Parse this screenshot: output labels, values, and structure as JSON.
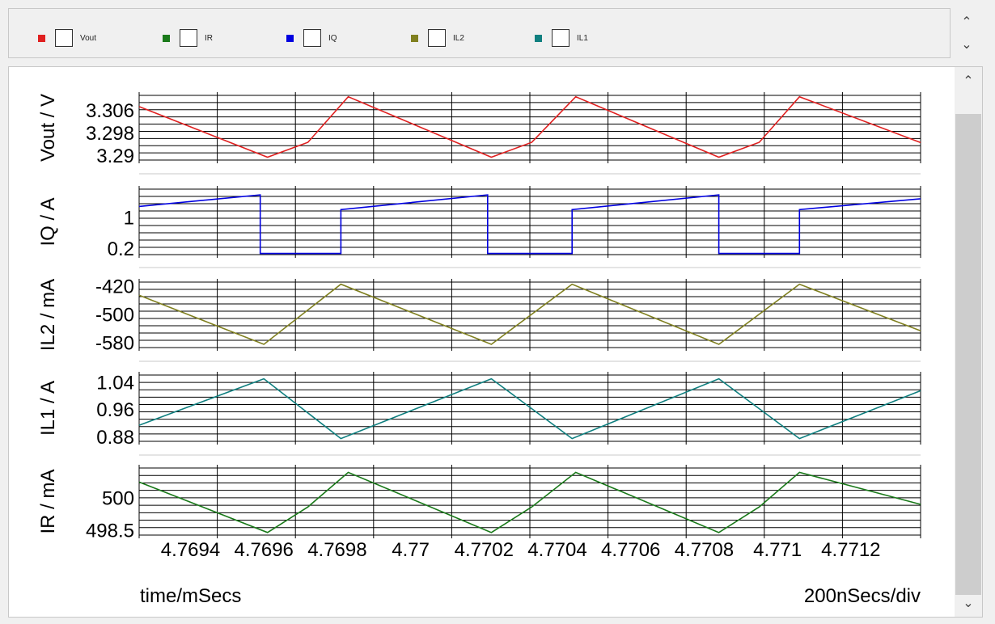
{
  "legend": [
    {
      "label": "Vout",
      "color": "#e02020"
    },
    {
      "label": "IR",
      "color": "#1a7a1a"
    },
    {
      "label": "IQ",
      "color": "#0000e0"
    },
    {
      "label": "IL2",
      "color": "#808020"
    },
    {
      "label": "IL1",
      "color": "#108080"
    }
  ],
  "footer": {
    "left": "time/mSecs",
    "right": "200nSecs/div"
  },
  "icons": {
    "up": "chevron-up-icon",
    "down": "chevron-down-icon"
  },
  "chart_data": {
    "type": "line",
    "xlabel": "time/mSecs",
    "xlim": [
      4.76926,
      4.77139
    ],
    "xticks": [
      {
        "value": 4.7694,
        "label": "4.7694"
      },
      {
        "value": 4.7696,
        "label": "4.7696"
      },
      {
        "value": 4.7698,
        "label": "4.7698"
      },
      {
        "value": 4.77,
        "label": "4.77"
      },
      {
        "value": 4.7702,
        "label": "4.7702"
      },
      {
        "value": 4.7704,
        "label": "4.7704"
      },
      {
        "value": 4.7706,
        "label": "4.7706"
      },
      {
        "value": 4.7708,
        "label": "4.7708"
      },
      {
        "value": 4.771,
        "label": "4.771"
      },
      {
        "value": 4.7712,
        "label": "4.7712"
      }
    ],
    "panels": [
      {
        "ylabel": "Vout / V",
        "color": "#e02020",
        "ylim": [
          3.2885,
          3.3115
        ],
        "yticks": [
          {
            "value": 3.306,
            "label": "3.306"
          },
          {
            "value": 3.298,
            "label": "3.298"
          },
          {
            "value": 3.29,
            "label": "3.29"
          }
        ],
        "x": [
          4.76926,
          4.76961,
          4.76972,
          4.76983,
          4.77022,
          4.77033,
          4.77045,
          4.77084,
          4.77095,
          4.77106,
          4.77139
        ],
        "y": [
          3.3075,
          3.2895,
          3.2948,
          3.311,
          3.2895,
          3.2948,
          3.311,
          3.2895,
          3.2948,
          3.311,
          3.2947
        ]
      },
      {
        "ylabel": "IQ / A",
        "color": "#0000e0",
        "ylim": [
          0.05,
          1.75
        ],
        "yticks": [
          {
            "value": 1,
            "label": "1"
          },
          {
            "value": 0.2,
            "label": "0.2"
          }
        ],
        "x": [
          4.76926,
          4.76959,
          4.76959,
          4.76981,
          4.76981,
          4.77021,
          4.77021,
          4.77044,
          4.77044,
          4.77084,
          4.77084,
          4.77106,
          4.77106,
          4.77139
        ],
        "y": [
          1.3,
          1.6,
          0.08,
          0.08,
          1.22,
          1.6,
          0.08,
          0.08,
          1.22,
          1.6,
          0.08,
          0.08,
          1.22,
          1.5
        ]
      },
      {
        "ylabel": "IL2 / mA",
        "color": "#808020",
        "ylim": [
          -592,
          -408
        ],
        "yticks": [
          {
            "value": -420,
            "label": "-420"
          },
          {
            "value": -500,
            "label": "-500"
          },
          {
            "value": -580,
            "label": "-580"
          }
        ],
        "x": [
          4.76926,
          4.7696,
          4.76981,
          4.77022,
          4.77044,
          4.77084,
          4.77106,
          4.77139
        ],
        "y": [
          -445,
          -583,
          -414,
          -583,
          -414,
          -583,
          -414,
          -545
        ]
      },
      {
        "ylabel": "IL1 / A",
        "color": "#108080",
        "ylim": [
          0.868,
          1.062
        ],
        "yticks": [
          {
            "value": 1.04,
            "label": "1.04"
          },
          {
            "value": 0.96,
            "label": "0.96"
          },
          {
            "value": 0.88,
            "label": "0.88"
          }
        ],
        "x": [
          4.76926,
          4.7696,
          4.76981,
          4.77022,
          4.77044,
          4.77084,
          4.77106,
          4.77139
        ],
        "y": [
          0.915,
          1.051,
          0.876,
          1.051,
          0.876,
          1.051,
          0.876,
          1.016
        ]
      },
      {
        "ylabel": "IR / mA",
        "color": "#1a7a1a",
        "ylim": [
          498.3,
          501.4
        ],
        "yticks": [
          {
            "value": 500,
            "label": "500"
          },
          {
            "value": 498.5,
            "label": "498.5"
          }
        ],
        "x": [
          4.76926,
          4.76961,
          4.76972,
          4.76983,
          4.77022,
          4.77033,
          4.77045,
          4.77084,
          4.77095,
          4.77106,
          4.77139
        ],
        "y": [
          500.75,
          498.42,
          499.6,
          501.2,
          498.42,
          499.6,
          501.2,
          498.42,
          499.6,
          501.2,
          499.72
        ]
      }
    ]
  }
}
